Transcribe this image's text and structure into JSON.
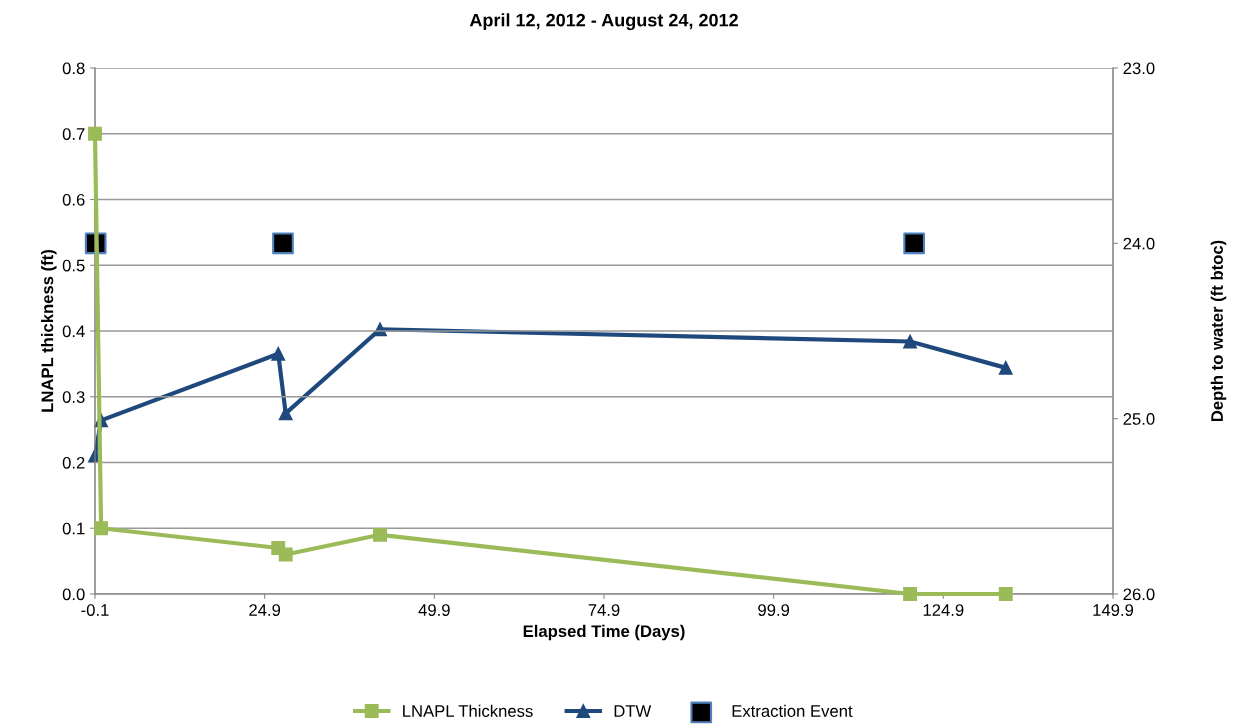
{
  "chart_data": {
    "type": "line",
    "title": "April 12, 2012 - August 24, 2012",
    "xlabel": "Elapsed Time (Days)",
    "ylabel": "LNAPL thickness (ft)",
    "y2label": "Depth to water (ft btoc)",
    "xlim": [
      -0.1,
      149.9
    ],
    "xticks": [
      -0.1,
      24.9,
      49.9,
      74.9,
      99.9,
      124.9,
      149.9
    ],
    "ylim": [
      0,
      0.8
    ],
    "yticks": [
      {
        "value": 0,
        "label": "0.0"
      },
      0.1,
      0.2,
      0.3,
      0.4,
      0.5,
      0.6,
      0.7,
      0.8
    ],
    "y2lim": [
      26,
      23
    ],
    "y2ticks": [
      {
        "value": 23,
        "label": "23.0"
      },
      {
        "value": 24,
        "label": "24.0"
      },
      {
        "value": 25,
        "label": "25.0"
      },
      {
        "value": 26,
        "label": "26.0"
      }
    ],
    "grid": "y",
    "legend": "bottom",
    "series": [
      {
        "name": "LNAPL Thickness",
        "color": "#9bbb59",
        "marker": "square",
        "x": [
          -0.1,
          0.8,
          26.9,
          28.0,
          41.9,
          120.0,
          134.1
        ],
        "values": [
          0.7,
          0.1,
          0.07,
          0.06,
          0.09,
          0.0,
          0.0
        ]
      },
      {
        "name": "DTW",
        "color": "#1f497d",
        "marker": "triangle",
        "axis": "y2",
        "x": [
          -0.1,
          0.8,
          26.9,
          28.0,
          41.9,
          120.0,
          134.1
        ],
        "values": [
          25.21,
          25.01,
          24.63,
          24.97,
          24.49,
          24.56,
          24.71
        ]
      },
      {
        "name": "Extraction Event",
        "type": "scatter",
        "color": "#000000",
        "marker": "square",
        "axis": "y2",
        "x": [
          0.0,
          27.6,
          120.6
        ],
        "values": [
          24.0,
          24.0,
          24.0
        ]
      }
    ]
  }
}
